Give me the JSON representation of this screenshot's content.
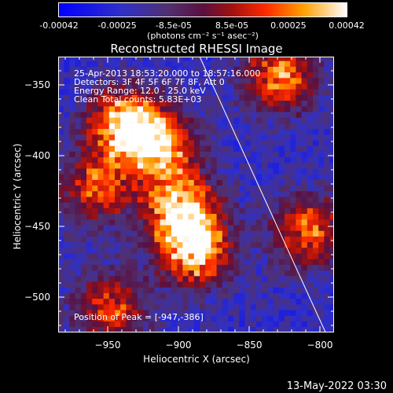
{
  "colorbar": {
    "tick_labels": [
      "-0.00042",
      "-0.00025",
      "-8.5e-05",
      "8.5e-05",
      "0.00025",
      "0.00042"
    ],
    "tick_values": [
      -0.00042,
      -0.00025,
      -8.5e-05,
      8.5e-05,
      0.00025,
      0.00042
    ],
    "range": [
      -0.00042,
      0.00042
    ],
    "units": "(photons cm⁻² s⁻¹ asec⁻²)"
  },
  "chart_data": {
    "type": "heatmap",
    "title": "Reconstructed RHESSI Image",
    "xlabel": "Heliocentric X (arcsec)",
    "ylabel": "Heliocentric Y (arcsec)",
    "xlim": [
      -985,
      -790
    ],
    "ylim": [
      -525,
      -330
    ],
    "x_ticks": [
      -950,
      -900,
      -850,
      -800
    ],
    "y_ticks": [
      -350,
      -400,
      -450,
      -500
    ],
    "x_tick_labels": [
      "−950",
      "−900",
      "−850",
      "−800"
    ],
    "y_tick_labels": [
      "−350",
      "−400",
      "−450",
      "−500"
    ],
    "limb_line": {
      "x": [
        -885,
        -796
      ],
      "y": [
        -330,
        -525
      ]
    },
    "sources": [
      {
        "x": -940,
        "y": -380,
        "peak": 0.00042
      },
      {
        "x": -915,
        "y": -395,
        "peak": 0.00034
      },
      {
        "x": -900,
        "y": -440,
        "peak": 0.0004
      },
      {
        "x": -890,
        "y": -470,
        "peak": 0.00036
      },
      {
        "x": -830,
        "y": -345,
        "peak": 0.0003
      },
      {
        "x": -810,
        "y": -455,
        "peak": 0.00026
      },
      {
        "x": -960,
        "y": -425,
        "peak": 0.0002
      },
      {
        "x": -950,
        "y": -510,
        "peak": 0.00018
      }
    ],
    "annotations": [
      "25-Apr-2013 18:53:20.000 to 18:57:16.000",
      "Detectors: 3F 4F 5F 6F 7F 8F, Att 0",
      "Energy Range: 12.0 - 25.0 keV",
      "Clean    Total counts: 5.83E+03"
    ],
    "peak_label": "Position of Peak = [-947,-386]"
  },
  "footer": {
    "timestamp": "13-May-2022 03:30"
  }
}
